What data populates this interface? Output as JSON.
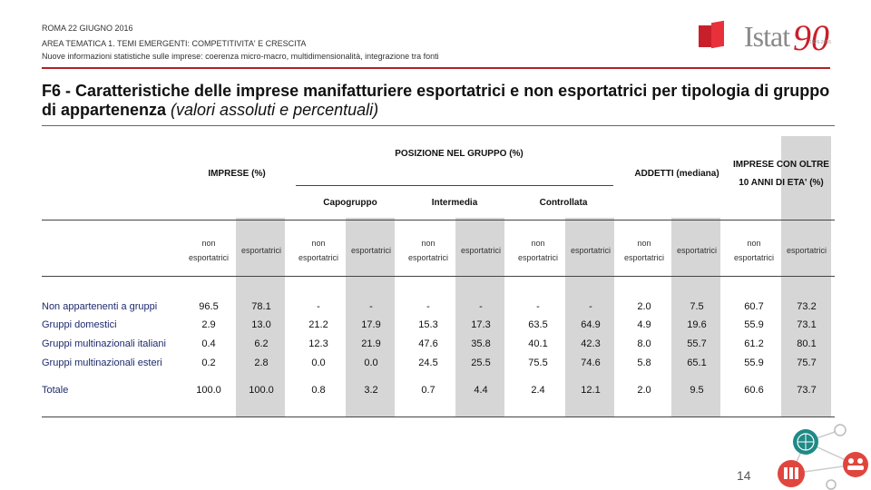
{
  "header": {
    "date": "ROMA 22 GIUGNO 2016",
    "area": "AREA TEMATICA 1. TEMI EMERGENTI: COMPETITIVITA' E CRESCITA",
    "subtitle": "Nuove informazioni statistiche sulle imprese: coerenza micro-macro, multidimensionalità, integrazione tra fonti",
    "logo_word": "Istat",
    "logo_number": "90",
    "logo_years": "1926-2016"
  },
  "title": {
    "main": "F6 - Caratteristiche delle imprese manifatturiere esportatrici e non esportatrici per tipologia di gruppo di appartenenza",
    "note": "(valori assoluti e percentuali)"
  },
  "table": {
    "group_headers": {
      "imprese": "IMPRESE (%)",
      "posizione": "POSIZIONE NEL GRUPPO (%)",
      "addetti": "ADDETTI (mediana)",
      "oltre10_line1": "IMPRESE CON OLTRE",
      "oltre10_line2": "10 ANNI DI ETA' (%)"
    },
    "sub_headers": {
      "capogruppo": "Capogruppo",
      "intermedia": "Intermedia",
      "controllata": "Controllata"
    },
    "col_labels": {
      "non_line1": "non",
      "non_line2": "esportatrici",
      "exp": "esportatrici"
    },
    "rows": [
      {
        "label": "Non appartenenti a gruppi",
        "values": [
          "96.5",
          "78.1",
          "-",
          "-",
          "-",
          "-",
          "-",
          "-",
          "2.0",
          "7.5",
          "60.7",
          "73.2"
        ]
      },
      {
        "label": "Gruppi domestici",
        "values": [
          "2.9",
          "13.0",
          "21.2",
          "17.9",
          "15.3",
          "17.3",
          "63.5",
          "64.9",
          "4.9",
          "19.6",
          "55.9",
          "73.1"
        ]
      },
      {
        "label": "Gruppi multinazionali italiani",
        "values": [
          "0.4",
          "6.2",
          "12.3",
          "21.9",
          "47.6",
          "35.8",
          "40.1",
          "42.3",
          "8.0",
          "55.7",
          "61.2",
          "80.1"
        ]
      },
      {
        "label": "Gruppi multinazionali esteri",
        "values": [
          "0.2",
          "2.8",
          "0.0",
          "0.0",
          "24.5",
          "25.5",
          "75.5",
          "74.6",
          "5.8",
          "65.1",
          "55.9",
          "75.7"
        ]
      },
      {
        "label": "Totale",
        "values": [
          "100.0",
          "100.0",
          "0.8",
          "3.2",
          "0.7",
          "4.4",
          "2.4",
          "12.1",
          "2.0",
          "9.5",
          "60.6",
          "73.7"
        ]
      }
    ]
  },
  "footer": {
    "page_number": "14"
  },
  "colors": {
    "accent_red": "#b22029",
    "row_label_blue": "#1e2a6e",
    "shade_grey": "#d6d6d6"
  }
}
